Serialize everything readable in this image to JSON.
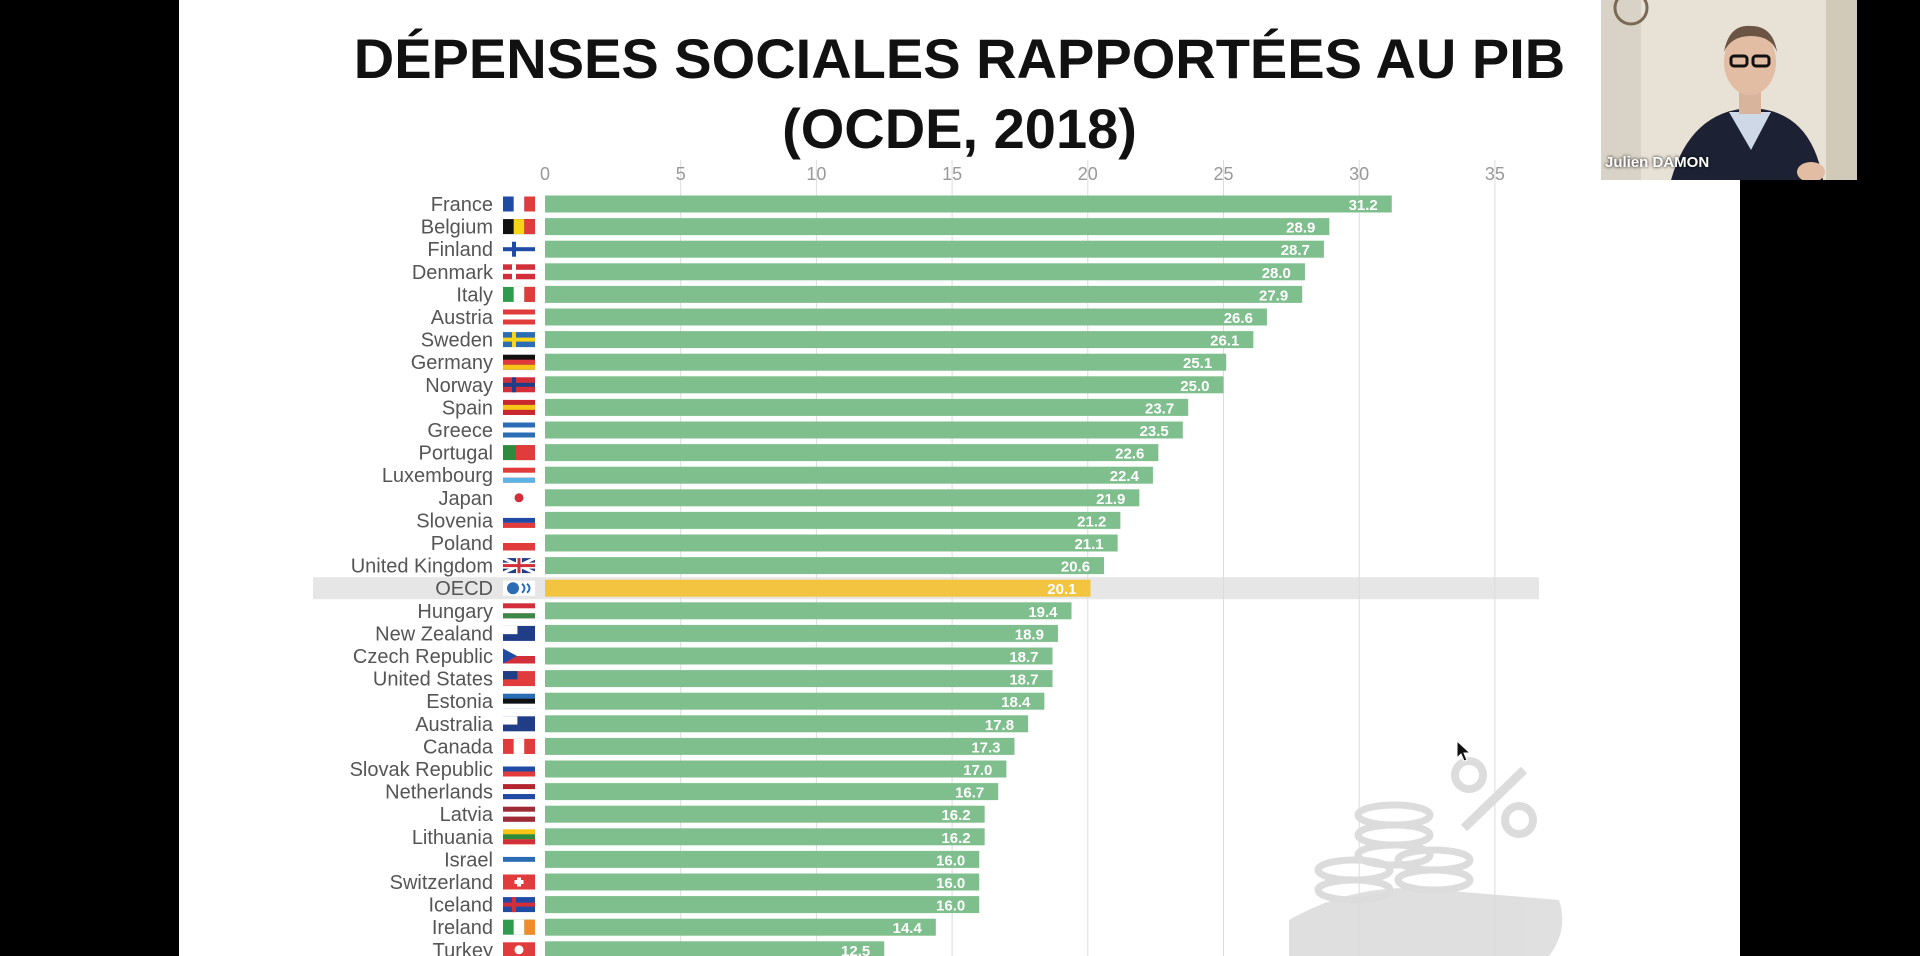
{
  "slide": {
    "title_line1": "DÉPENSES SOCIALES RAPPORTÉES AU PIB",
    "title_line2": "(OCDE, 2018)"
  },
  "webcam": {
    "participant_name": "Julien DAMON"
  },
  "chart_data": {
    "type": "bar",
    "orientation": "horizontal",
    "title": "DÉPENSES SOCIALES RAPPORTÉES AU PIB (OCDE, 2018)",
    "xlim": [
      0,
      35
    ],
    "x_ticks": [
      0,
      5,
      10,
      15,
      20,
      25,
      30,
      35
    ],
    "grid": true,
    "bar_color": "#7fbf8d",
    "highlight_color": "#f2c43f",
    "highlight_band_color": "#e6e6e6",
    "highlight_category": "OECD",
    "categories": [
      "France",
      "Belgium",
      "Finland",
      "Denmark",
      "Italy",
      "Austria",
      "Sweden",
      "Germany",
      "Norway",
      "Spain",
      "Greece",
      "Portugal",
      "Luxembourg",
      "Japan",
      "Slovenia",
      "Poland",
      "United Kingdom",
      "OECD",
      "Hungary",
      "New Zealand",
      "Czech Republic",
      "United States",
      "Estonia",
      "Australia",
      "Canada",
      "Slovak Republic",
      "Netherlands",
      "Latvia",
      "Lithuania",
      "Israel",
      "Switzerland",
      "Iceland",
      "Ireland",
      "Turkey"
    ],
    "values": [
      31.2,
      28.9,
      28.7,
      28.0,
      27.9,
      26.6,
      26.1,
      25.1,
      25.0,
      23.7,
      23.5,
      22.6,
      22.4,
      21.9,
      21.2,
      21.1,
      20.6,
      20.1,
      19.4,
      18.9,
      18.7,
      18.7,
      18.4,
      17.8,
      17.3,
      17.0,
      16.7,
      16.2,
      16.2,
      16.0,
      16.0,
      16.0,
      14.4,
      12.5
    ],
    "value_labels": [
      "31.2",
      "28.9",
      "28.7",
      "28.0",
      "27.9",
      "26.6",
      "26.1",
      "25.1",
      "25.0",
      "23.7",
      "23.5",
      "22.6",
      "22.4",
      "21.9",
      "21.2",
      "21.1",
      "20.6",
      "20.1",
      "19.4",
      "18.9",
      "18.7",
      "18.7",
      "18.4",
      "17.8",
      "17.3",
      "17.0",
      "16.7",
      "16.2",
      "16.2",
      "16.0",
      "16.0",
      "16.0",
      "14.4",
      "12.5"
    ],
    "flags": [
      {
        "type": "v3",
        "colors": [
          "#1f4ba5",
          "#ffffff",
          "#e23b3b"
        ]
      },
      {
        "type": "v3",
        "colors": [
          "#111111",
          "#f7d417",
          "#e23b3b"
        ]
      },
      {
        "type": "nordic",
        "colors": [
          "#ffffff",
          "#1f4ba5"
        ]
      },
      {
        "type": "nordic",
        "colors": [
          "#d32f3a",
          "#ffffff"
        ]
      },
      {
        "type": "v3",
        "colors": [
          "#2e9b4e",
          "#ffffff",
          "#e23b3b"
        ]
      },
      {
        "type": "h3",
        "colors": [
          "#e23b3b",
          "#ffffff",
          "#e23b3b"
        ]
      },
      {
        "type": "nordic",
        "colors": [
          "#2a6db5",
          "#f7d417"
        ]
      },
      {
        "type": "h3",
        "colors": [
          "#111111",
          "#e23b3b",
          "#f7c517"
        ]
      },
      {
        "type": "nordic",
        "colors": [
          "#d32f3a",
          "#1f3e87"
        ]
      },
      {
        "type": "h3",
        "colors": [
          "#c8282e",
          "#f7c517",
          "#c8282e"
        ]
      },
      {
        "type": "h3",
        "colors": [
          "#2a6db5",
          "#ffffff",
          "#2a6db5"
        ]
      },
      {
        "type": "v2",
        "colors": [
          "#2e8b3e",
          "#e23b3b"
        ]
      },
      {
        "type": "h3",
        "colors": [
          "#e23b3b",
          "#ffffff",
          "#5bb4e6"
        ]
      },
      {
        "type": "disc",
        "colors": [
          "#ffffff",
          "#d32f3a"
        ]
      },
      {
        "type": "h3",
        "colors": [
          "#ffffff",
          "#1f4ba5",
          "#e23b3b"
        ]
      },
      {
        "type": "h2",
        "colors": [
          "#ffffff",
          "#e23b3b"
        ]
      },
      {
        "type": "cross",
        "colors": [
          "#1f3e87",
          "#ffffff",
          "#d32f3a"
        ]
      },
      {
        "type": "globe",
        "colors": [
          "#ffffff",
          "#2a6db5"
        ]
      },
      {
        "type": "h3",
        "colors": [
          "#d32f3a",
          "#ffffff",
          "#3b8a4a"
        ]
      },
      {
        "type": "canton",
        "colors": [
          "#1f3e87",
          "#ffffff"
        ]
      },
      {
        "type": "tri",
        "colors": [
          "#ffffff",
          "#d32f3a",
          "#1f4ba5"
        ]
      },
      {
        "type": "canton",
        "colors": [
          "#e23b3b",
          "#1f3e87"
        ]
      },
      {
        "type": "h3",
        "colors": [
          "#2a6db5",
          "#111111",
          "#ffffff"
        ]
      },
      {
        "type": "canton",
        "colors": [
          "#1f3e87",
          "#ffffff"
        ]
      },
      {
        "type": "v3",
        "colors": [
          "#e23b3b",
          "#ffffff",
          "#e23b3b"
        ]
      },
      {
        "type": "h3",
        "colors": [
          "#ffffff",
          "#1f4ba5",
          "#e23b3b"
        ]
      },
      {
        "type": "h3",
        "colors": [
          "#b3262d",
          "#ffffff",
          "#1f4ba5"
        ]
      },
      {
        "type": "h3",
        "colors": [
          "#9e2b35",
          "#ffffff",
          "#9e2b35"
        ]
      },
      {
        "type": "h3",
        "colors": [
          "#f7c517",
          "#2e8b3e",
          "#d32f3a"
        ]
      },
      {
        "type": "h3",
        "colors": [
          "#ffffff",
          "#2a6db5",
          "#ffffff"
        ]
      },
      {
        "type": "swiss",
        "colors": [
          "#e23b3b",
          "#ffffff"
        ]
      },
      {
        "type": "nordic",
        "colors": [
          "#1f4ba5",
          "#d32f3a"
        ]
      },
      {
        "type": "v3",
        "colors": [
          "#2e9b4e",
          "#ffffff",
          "#f28c28"
        ]
      },
      {
        "type": "disc",
        "colors": [
          "#e23b3b",
          "#ffffff"
        ]
      }
    ]
  }
}
